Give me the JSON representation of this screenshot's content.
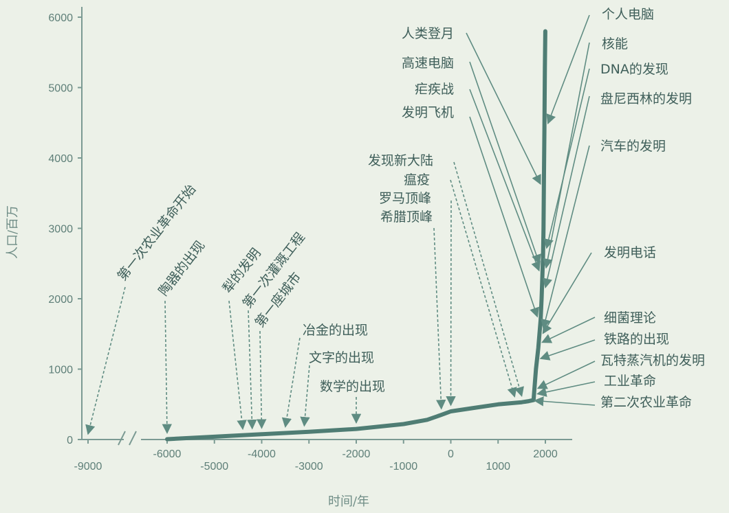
{
  "chart_data": {
    "type": "line",
    "title": "",
    "xlabel": "时间/年",
    "ylabel": "人口/百万",
    "xlim": [
      -9000,
      2300
    ],
    "ylim": [
      0,
      6000
    ],
    "x_ticks": [
      -9000,
      -6000,
      -5000,
      -4000,
      -3000,
      -2000,
      -1000,
      0,
      1000,
      2000
    ],
    "y_ticks": [
      0,
      1000,
      2000,
      3000,
      4000,
      5000,
      6000
    ],
    "axis_break_between": [
      -9000,
      -6000
    ],
    "grid": false,
    "legend": "none",
    "colors": {
      "curve": "#4f7d74",
      "axis": "#7b9a93",
      "arrow": "#5f8c82",
      "text": "#3f5f5a",
      "background": "#ecf1e8"
    },
    "series": [
      {
        "x": [
          -6000,
          -5000,
          -4000,
          -3000,
          -2000,
          -1000,
          -500,
          -200,
          0,
          500,
          1000,
          1500,
          1650,
          1750,
          1800,
          1850,
          1900,
          1920,
          1930,
          1950,
          1960,
          1970,
          1980,
          1990,
          1999
        ],
        "y": [
          5,
          40,
          75,
          110,
          150,
          220,
          280,
          350,
          400,
          450,
          500,
          530,
          545,
          560,
          1000,
          1300,
          1700,
          2000,
          2200,
          2600,
          3000,
          3700,
          4400,
          5300,
          5800
        ]
      }
    ],
    "annotations_left": [
      {
        "text": "第一次农业革命开始",
        "x": -9000,
        "rotated": true
      },
      {
        "text": "陶器的出现",
        "x": -6000,
        "rotated": true
      },
      {
        "text": "犁的发明",
        "x": -4400,
        "rotated": true
      },
      {
        "text": "第一次灌溉工程",
        "x": -4200,
        "rotated": true
      },
      {
        "text": "第一座城市",
        "x": -4000,
        "rotated": true
      },
      {
        "text": "冶金的出现",
        "x": -3500,
        "rotated": false
      },
      {
        "text": "文字的出现",
        "x": -3100,
        "rotated": false
      },
      {
        "text": "数学的出现",
        "x": -2000,
        "rotated": false
      },
      {
        "text": "希腊顶峰",
        "x": -200,
        "rotated": false
      },
      {
        "text": "罗马顶峰",
        "x": 0,
        "rotated": false
      },
      {
        "text": "瘟疫",
        "x": 1350,
        "rotated": false
      },
      {
        "text": "发现新大陆",
        "x": 1500,
        "rotated": false
      }
    ],
    "annotations_top": [
      {
        "text": "人类登月",
        "year": 1969
      },
      {
        "text": "高速电脑",
        "year": 1945
      },
      {
        "text": "疟疾战",
        "year": 1940
      },
      {
        "text": "发明飞机",
        "year": 1903
      }
    ],
    "annotations_right": [
      {
        "text": "个人电脑",
        "year": 1981
      },
      {
        "text": "核能",
        "year": 1942
      },
      {
        "text": "DNA的发现",
        "year": 1953
      },
      {
        "text": "盘尼西林的发明",
        "year": 1928
      },
      {
        "text": "汽车的发明",
        "year": 1885
      },
      {
        "text": "发明电话",
        "year": 1876
      },
      {
        "text": "细菌理论",
        "year": 1860
      },
      {
        "text": "铁路的出现",
        "year": 1825
      },
      {
        "text": "瓦特蒸汽机的发明",
        "year": 1769
      },
      {
        "text": "工业革命",
        "year": 1760
      },
      {
        "text": "第二次农业革命",
        "year": 1700
      }
    ]
  }
}
